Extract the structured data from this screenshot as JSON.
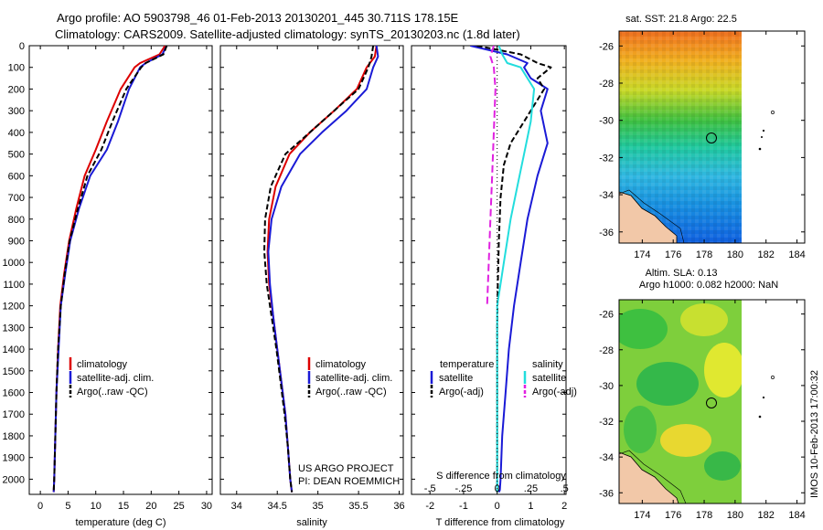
{
  "header": {
    "line1": "Argo profile: AO 5903798_46 01-Feb-2013 20130201_445 30.711S 178.15E",
    "line2": "Climatology: CARS2009. Satellite-adjusted climatology: synTS_20130203.nc (1.8d later)"
  },
  "colors": {
    "climatology": "#dd0000",
    "satellite_t": "#1a1ad6",
    "argo": "#000000",
    "satellite_s": "#22dddd",
    "argo_s": "#e020e0"
  },
  "credit": {
    "line1": "US ARGO PROJECT",
    "line2": "PI: DEAN ROEMMICH"
  },
  "stamp": "IMOS 10-Feb-2013 17:00:32",
  "chart_data": [
    {
      "type": "line",
      "panel": "temperature",
      "xlabel": "temperature (deg C)",
      "ylabel": "",
      "xlim": [
        -2,
        31
      ],
      "ylim": [
        2070,
        0
      ],
      "xticks": [
        0,
        5,
        10,
        15,
        20,
        25,
        30
      ],
      "yticks": [
        0,
        100,
        200,
        300,
        400,
        500,
        600,
        700,
        800,
        900,
        1000,
        1100,
        1200,
        1300,
        1400,
        1500,
        1600,
        1700,
        1800,
        1900,
        2000
      ],
      "legend": [
        "climatology",
        "satellite-adj. clim.",
        "Argo(..raw -QC)"
      ],
      "series": [
        {
          "name": "climatology",
          "color": "#dd0000",
          "dash": "",
          "x": [
            22.5,
            21.5,
            18,
            17,
            14.5,
            12,
            10,
            8,
            6.5,
            5.2,
            4.3,
            3.6,
            3.2,
            2.9,
            2.7,
            2.5,
            2.4
          ],
          "y": [
            0,
            40,
            80,
            100,
            200,
            350,
            480,
            600,
            750,
            900,
            1050,
            1200,
            1400,
            1600,
            1800,
            2000,
            2060
          ]
        },
        {
          "name": "satellite-adj. clim.",
          "color": "#1a1ad6",
          "dash": "",
          "x": [
            22.8,
            22,
            19,
            18,
            16,
            14,
            12,
            9,
            7,
            5.4,
            4.5,
            3.7,
            3.3,
            2.9,
            2.7,
            2.5,
            2.4
          ],
          "y": [
            0,
            40,
            80,
            100,
            200,
            350,
            480,
            600,
            750,
            900,
            1050,
            1200,
            1400,
            1600,
            1800,
            2000,
            2060
          ]
        },
        {
          "name": "Argo(..raw -QC)",
          "color": "#000000",
          "dash": "6,3",
          "x": [
            22.8,
            22.2,
            19,
            18.2,
            15.5,
            13,
            11,
            8.5,
            6.8,
            5.3,
            4.4,
            3.7,
            3.2,
            2.9,
            2.7,
            2.5,
            2.4
          ],
          "y": [
            0,
            40,
            80,
            100,
            200,
            350,
            480,
            600,
            750,
            900,
            1050,
            1200,
            1400,
            1600,
            1800,
            2000,
            2060
          ]
        }
      ]
    },
    {
      "type": "line",
      "panel": "salinity",
      "xlabel": "salinity",
      "ylabel": "",
      "xlim": [
        33.8,
        36.05
      ],
      "ylim": [
        2070,
        0
      ],
      "xticks": [
        34,
        34.5,
        35,
        35.5,
        36
      ],
      "legend": [
        "climatology",
        "satellite-adj. clim.",
        "Argo(..raw -QC)"
      ],
      "series": [
        {
          "name": "climatology",
          "color": "#dd0000",
          "dash": "",
          "x": [
            35.72,
            35.7,
            35.6,
            35.48,
            35.2,
            34.9,
            34.65,
            34.48,
            34.4,
            34.38,
            34.4,
            34.45,
            34.5,
            34.55,
            34.6,
            34.63,
            34.66,
            34.68
          ],
          "y": [
            0,
            50,
            100,
            200,
            300,
            400,
            500,
            650,
            800,
            950,
            1100,
            1250,
            1400,
            1550,
            1700,
            1850,
            2000,
            2060
          ]
        },
        {
          "name": "satellite-adj. clim.",
          "color": "#1a1ad6",
          "dash": "",
          "x": [
            35.72,
            35.74,
            35.68,
            35.6,
            35.35,
            35.05,
            34.78,
            34.55,
            34.43,
            34.39,
            34.41,
            34.45,
            34.5,
            34.55,
            34.6,
            34.63,
            34.66,
            34.68
          ],
          "y": [
            0,
            50,
            100,
            200,
            300,
            400,
            500,
            650,
            800,
            950,
            1100,
            1250,
            1400,
            1550,
            1700,
            1850,
            2000,
            2060
          ]
        },
        {
          "name": "Argo(..raw -QC)",
          "color": "#000000",
          "dash": "6,3",
          "x": [
            35.68,
            35.66,
            35.62,
            35.5,
            35.2,
            34.9,
            34.6,
            34.42,
            34.35,
            34.34,
            34.37,
            34.43,
            34.49,
            34.54,
            34.59,
            34.63,
            34.66,
            34.68
          ],
          "y": [
            0,
            50,
            100,
            200,
            300,
            400,
            500,
            650,
            800,
            950,
            1100,
            1250,
            1400,
            1550,
            1700,
            1850,
            2000,
            2060
          ]
        }
      ]
    },
    {
      "type": "line",
      "panel": "difference",
      "xlabel": "T difference from climatology",
      "xlabel_top": "S difference from climatology",
      "xlim": [
        -2.55,
        2.05
      ],
      "ylim": [
        2070,
        0
      ],
      "xticks": [
        -2,
        -1,
        0,
        1,
        2
      ],
      "xticks_s": [
        -0.5,
        -0.25,
        0,
        0.25,
        0.5
      ],
      "legend_titles": [
        "temperature",
        "salinity"
      ],
      "legend": [
        "satellite",
        "Argo(-adj)",
        "satellite",
        "Argo(-adj)"
      ],
      "series": [
        {
          "name": "satellite",
          "group": "temperature",
          "color": "#1a1ad6",
          "dash": "",
          "x": [
            -0.8,
            0.3,
            0.9,
            0.8,
            1.0,
            1.5,
            1.3,
            1.5,
            1.2,
            0.9,
            0.7,
            0.5,
            0.35,
            0.25,
            0.15,
            0.1,
            0.08,
            0.05
          ],
          "y": [
            0,
            40,
            80,
            100,
            150,
            200,
            300,
            450,
            600,
            800,
            1000,
            1200,
            1400,
            1600,
            1800,
            2000,
            2050,
            2060
          ]
        },
        {
          "name": "Argo(-adj)",
          "group": "temperature",
          "color": "#000000",
          "dash": "6,3",
          "x": [
            -0.6,
            0.7,
            1.2,
            1.6,
            1.2,
            1.4,
            0.8,
            0.4,
            0.2,
            0.1,
            0.05,
            0.02,
            0.0,
            0.0,
            0.0,
            0.0
          ],
          "y": [
            0,
            40,
            80,
            100,
            150,
            200,
            350,
            450,
            550,
            700,
            900,
            1100,
            1300,
            1600,
            1800,
            2060
          ]
        },
        {
          "name": "satellite",
          "group": "salinity",
          "color": "#22dddd",
          "dash": "",
          "x": [
            0.05,
            0.15,
            0.3,
            0.7,
            1.1,
            1.0,
            0.8,
            0.6,
            0.4,
            0.2,
            0.0,
            0.0,
            0.0,
            0.0,
            0.0
          ],
          "y": [
            0,
            40,
            80,
            100,
            200,
            350,
            500,
            650,
            800,
            1000,
            1200,
            1400,
            1600,
            1800,
            2060
          ]
        },
        {
          "name": "Argo(-adj)",
          "group": "salinity",
          "color": "#e020e0",
          "dash": "8,4",
          "x": [
            -0.1,
            -0.2,
            -0.1,
            -0.05,
            -0.1,
            -0.15,
            -0.2,
            -0.25,
            -0.3
          ],
          "y": [
            0,
            50,
            100,
            200,
            400,
            600,
            800,
            1000,
            1200
          ]
        }
      ]
    },
    {
      "type": "heatmap",
      "panel": "map_sst",
      "title": "sat. SST: 21.8 Argo: 22.5",
      "xlim": [
        172.5,
        184.5
      ],
      "ylim": [
        -36.6,
        -25.2
      ],
      "xticks": [
        174,
        176,
        178,
        180,
        182,
        184
      ],
      "yticks": [
        -26,
        -28,
        -30,
        -32,
        -34,
        -36
      ],
      "float_position": [
        178.15,
        -30.711
      ]
    },
    {
      "type": "heatmap",
      "panel": "map_sla",
      "title": "Altim. SLA: 0.13",
      "subtitle": "Argo h1000: 0.082 h2000: NaN",
      "xlim": [
        172.5,
        184.5
      ],
      "ylim": [
        -36.6,
        -25.2
      ],
      "xticks": [
        174,
        176,
        178,
        180,
        182,
        184
      ],
      "yticks": [
        -26,
        -28,
        -30,
        -32,
        -34,
        -36
      ],
      "float_position": [
        178.15,
        -30.711
      ]
    }
  ]
}
